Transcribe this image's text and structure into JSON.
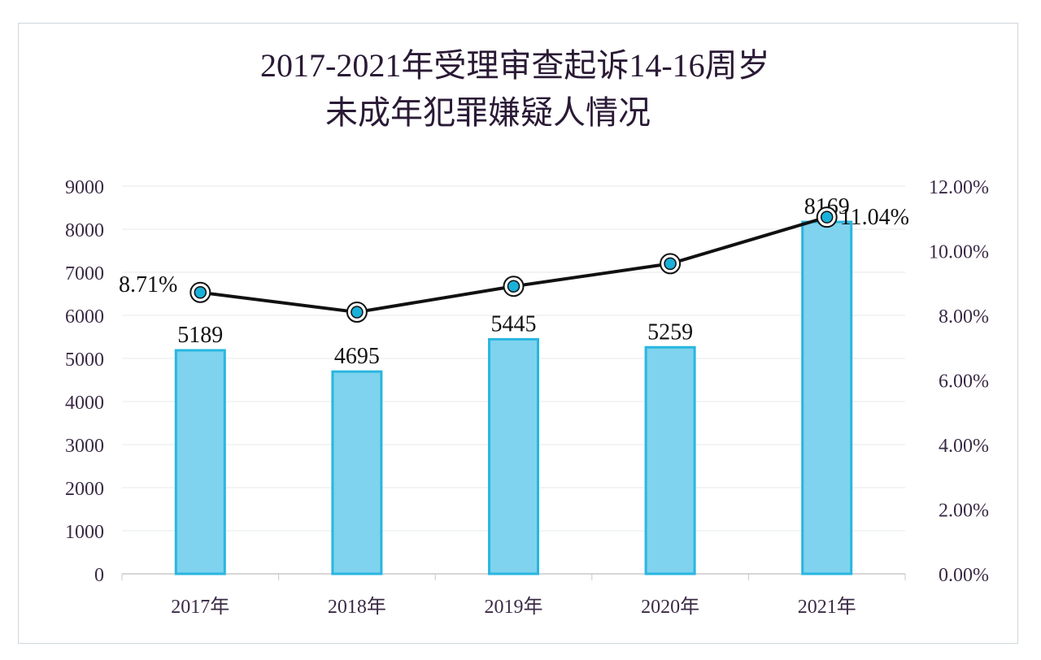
{
  "chart_data": {
    "type": "bar+line",
    "title": [
      "2017-2021年受理审查起诉14-16周岁",
      "未成年犯罪嫌疑人情况"
    ],
    "categories": [
      "2017年",
      "2018年",
      "2019年",
      "2020年",
      "2021年"
    ],
    "series": [
      {
        "type": "bar",
        "axis": "left",
        "values": [
          5189,
          4695,
          5445,
          5259,
          8169
        ],
        "labels": [
          "5189",
          "4695",
          "5445",
          "5259",
          "8169"
        ],
        "color": "#7fd3ee",
        "stroke": "#29b6e0"
      },
      {
        "type": "line",
        "axis": "right",
        "values": [
          8.71,
          8.1,
          8.9,
          9.6,
          11.04
        ],
        "labels": [
          "8.71%",
          "",
          "",
          "",
          "11.04%"
        ],
        "color": "#111111",
        "marker_color": "#1ab0d8"
      }
    ],
    "y_left": {
      "min": 0,
      "max": 9000,
      "ticks": [
        "0",
        "1000",
        "2000",
        "3000",
        "4000",
        "5000",
        "6000",
        "7000",
        "8000",
        "9000"
      ]
    },
    "y_right": {
      "min": 0,
      "max": 12,
      "ticks": [
        "0.00%",
        "2.00%",
        "4.00%",
        "6.00%",
        "8.00%",
        "10.00%",
        "12.00%"
      ]
    },
    "grid": true,
    "legend": "none"
  }
}
